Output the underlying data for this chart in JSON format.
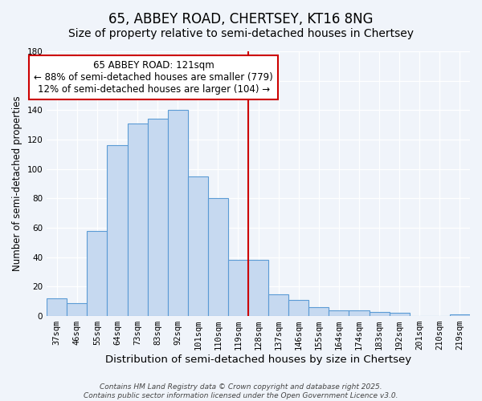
{
  "title": "65, ABBEY ROAD, CHERTSEY, KT16 8NG",
  "subtitle": "Size of property relative to semi-detached houses in Chertsey",
  "xlabel": "Distribution of semi-detached houses by size in Chertsey",
  "ylabel": "Number of semi-detached properties",
  "bar_labels": [
    "37sqm",
    "46sqm",
    "55sqm",
    "64sqm",
    "73sqm",
    "83sqm",
    "92sqm",
    "101sqm",
    "110sqm",
    "119sqm",
    "128sqm",
    "137sqm",
    "146sqm",
    "155sqm",
    "164sqm",
    "174sqm",
    "183sqm",
    "192sqm",
    "201sqm",
    "210sqm",
    "219sqm"
  ],
  "bar_values": [
    12,
    9,
    58,
    116,
    131,
    134,
    140,
    95,
    80,
    38,
    38,
    15,
    11,
    6,
    4,
    4,
    3,
    2,
    0,
    0,
    1
  ],
  "bar_color": "#c6d9f0",
  "bar_edge_color": "#5b9bd5",
  "vline_x": 9.5,
  "vline_color": "#cc0000",
  "annotation_text": "65 ABBEY ROAD: 121sqm\n← 88% of semi-detached houses are smaller (779)\n12% of semi-detached houses are larger (104) →",
  "annotation_box_color": "#ffffff",
  "annotation_border_color": "#cc0000",
  "ylim": [
    0,
    180
  ],
  "yticks": [
    0,
    20,
    40,
    60,
    80,
    100,
    120,
    140,
    160,
    180
  ],
  "footer1": "Contains HM Land Registry data © Crown copyright and database right 2025.",
  "footer2": "Contains public sector information licensed under the Open Government Licence v3.0.",
  "background_color": "#f0f4fa",
  "title_fontsize": 12,
  "subtitle_fontsize": 10,
  "xlabel_fontsize": 9.5,
  "ylabel_fontsize": 8.5,
  "tick_fontsize": 7.5,
  "annotation_fontsize": 8.5,
  "footer_fontsize": 6.5
}
